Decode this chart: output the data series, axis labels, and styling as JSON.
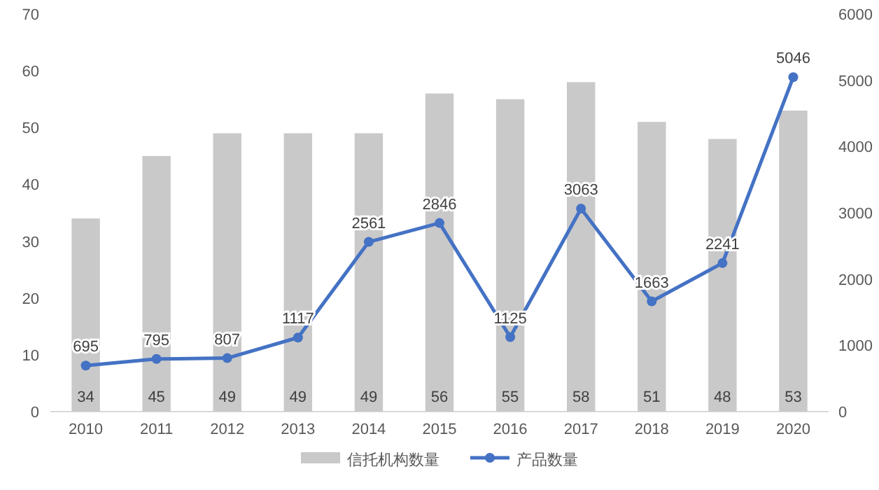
{
  "chart_data": {
    "type": "bar",
    "categories": [
      "2010",
      "2011",
      "2012",
      "2013",
      "2014",
      "2015",
      "2016",
      "2017",
      "2018",
      "2019",
      "2020"
    ],
    "series": [
      {
        "name": "信托机构数量",
        "color": "#c9c9c9",
        "values": [
          34,
          45,
          49,
          49,
          49,
          56,
          55,
          58,
          51,
          48,
          53
        ]
      },
      {
        "name": "产品数量",
        "type": "line",
        "axis": "y2",
        "color": "#4472c4",
        "values": [
          695,
          795,
          807,
          1117,
          2561,
          2846,
          1125,
          3063,
          1663,
          2241,
          5046
        ]
      }
    ],
    "ylim": [
      0,
      70
    ],
    "yticks": [
      0,
      10,
      20,
      30,
      40,
      50,
      60,
      70
    ],
    "y2lim": [
      0,
      6000
    ],
    "y2ticks": [
      0,
      1000,
      2000,
      3000,
      4000,
      5000,
      6000
    ],
    "marker": "circle",
    "data_labels": true,
    "legend": "bottom",
    "grid": false
  }
}
